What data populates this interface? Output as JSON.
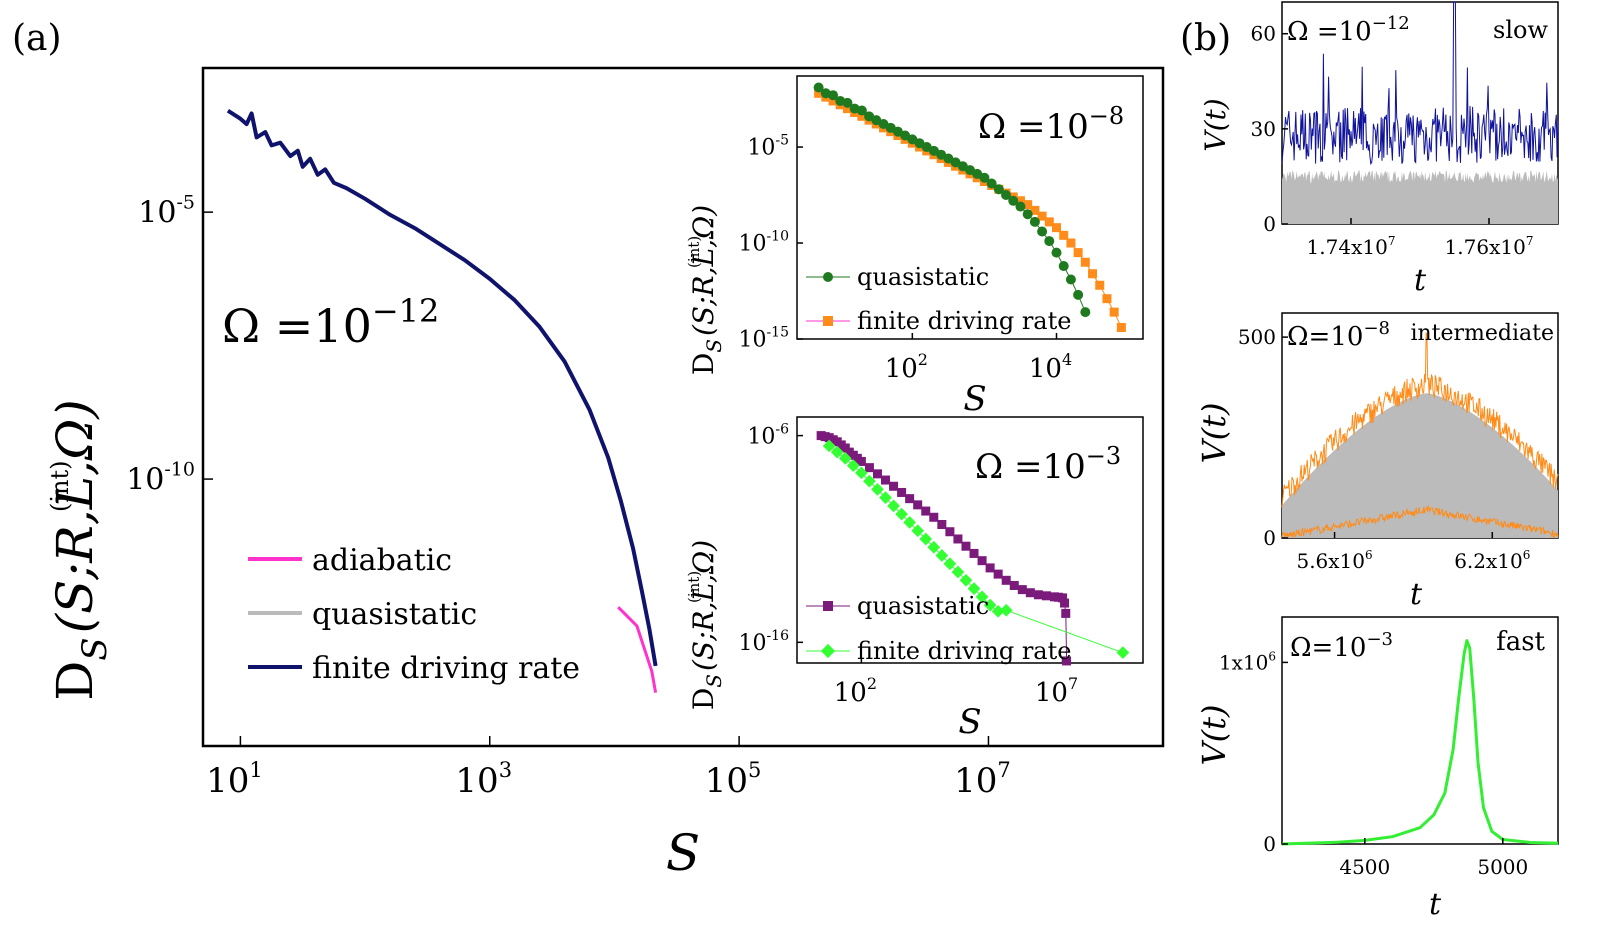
{
  "panel_labels": {
    "a": "(a)",
    "b": "(b)"
  },
  "chart_data": [
    {
      "id": "main",
      "type": "line",
      "xscale": "log",
      "yscale": "log",
      "xlim_log10": [
        0.7,
        8.4
      ],
      "ylim_log10": [
        -15.0,
        -2.3
      ],
      "xlabel": "S",
      "ylabel_main": "D",
      "ylabel_sup": "(int)",
      "ylabel_sub": "S",
      "ylabel_args": "(S;R,L,Ω)",
      "annotation_base": "Ω =10",
      "annotation_exp": "−12",
      "x_ticks": [
        {
          "base": "10",
          "exp": "1",
          "v": 1
        },
        {
          "base": "10",
          "exp": "3",
          "v": 3
        },
        {
          "base": "10",
          "exp": "5",
          "v": 5
        },
        {
          "base": "10",
          "exp": "7",
          "v": 7
        }
      ],
      "y_ticks": [
        {
          "base": "10",
          "exp": "-5",
          "v": -5
        },
        {
          "base": "10",
          "exp": "-10",
          "v": -10
        }
      ],
      "legend": [
        {
          "label": "adiabatic",
          "color": "#ff33cc"
        },
        {
          "label": "quasistatic",
          "color": "#bbbbbb"
        },
        {
          "label": "finite driving rate",
          "color": "#10136b"
        }
      ],
      "series": [
        {
          "name": "adiabatic",
          "color": "#ff33cc",
          "width": 3,
          "points_log10": [
            [
              4.03,
              -12.4
            ],
            [
              4.18,
              -12.75
            ],
            [
              4.3,
              -13.6
            ],
            [
              4.33,
              -14.0
            ]
          ]
        },
        {
          "name": "finite driving rate",
          "color": "#10136b",
          "width": 4,
          "points_log10": [
            [
              0.9,
              -3.1
            ],
            [
              1.0,
              -3.25
            ],
            [
              1.05,
              -3.35
            ],
            [
              1.09,
              -3.15
            ],
            [
              1.13,
              -3.6
            ],
            [
              1.2,
              -3.5
            ],
            [
              1.25,
              -3.75
            ],
            [
              1.32,
              -3.7
            ],
            [
              1.4,
              -3.95
            ],
            [
              1.46,
              -3.85
            ],
            [
              1.5,
              -4.15
            ],
            [
              1.56,
              -4.0
            ],
            [
              1.62,
              -4.3
            ],
            [
              1.68,
              -4.2
            ],
            [
              1.75,
              -4.45
            ],
            [
              1.85,
              -4.55
            ],
            [
              2.0,
              -4.75
            ],
            [
              2.2,
              -5.05
            ],
            [
              2.4,
              -5.3
            ],
            [
              2.6,
              -5.6
            ],
            [
              2.8,
              -5.9
            ],
            [
              3.0,
              -6.25
            ],
            [
              3.2,
              -6.65
            ],
            [
              3.4,
              -7.15
            ],
            [
              3.6,
              -7.8
            ],
            [
              3.8,
              -8.7
            ],
            [
              3.95,
              -9.6
            ],
            [
              4.05,
              -10.4
            ],
            [
              4.15,
              -11.3
            ],
            [
              4.22,
              -12.1
            ],
            [
              4.28,
              -12.8
            ],
            [
              4.33,
              -13.5
            ]
          ]
        }
      ]
    },
    {
      "id": "inset1",
      "type": "scatter",
      "xscale": "log",
      "yscale": "log",
      "xlim_log10": [
        0.4,
        5.2
      ],
      "ylim_log10": [
        -15.0,
        -1.3
      ],
      "xlabel": "S",
      "ylabel_main": "D",
      "ylabel_sup": "(int)",
      "ylabel_sub": "S",
      "ylabel_args": "(S;R,L,Ω)",
      "annotation_base": "Ω =10",
      "annotation_exp": "−8",
      "x_ticks": [
        {
          "base": "10",
          "exp": "2",
          "v": 2
        },
        {
          "base": "10",
          "exp": "4",
          "v": 4
        }
      ],
      "y_ticks": [
        {
          "base": "10",
          "exp": "-5",
          "v": -5
        },
        {
          "base": "10",
          "exp": "-10",
          "v": -10
        },
        {
          "base": "10",
          "exp": "-15",
          "v": -15
        }
      ],
      "legend": [
        {
          "label": "quasistatic",
          "color": "#1f7a1f",
          "marker": "circle"
        },
        {
          "label": "finite driving rate",
          "color": "#ff8c1a",
          "marker": "square"
        }
      ],
      "series": [
        {
          "name": "finite driving rate",
          "color": "#ff8c1a",
          "marker": "square",
          "x_log10": [
            0.7,
            0.8,
            0.9,
            1.0,
            1.1,
            1.2,
            1.3,
            1.4,
            1.5,
            1.6,
            1.7,
            1.8,
            1.9,
            2.0,
            2.1,
            2.2,
            2.3,
            2.4,
            2.5,
            2.6,
            2.7,
            2.8,
            2.9,
            3.0,
            3.1,
            3.2,
            3.3,
            3.4,
            3.5,
            3.6,
            3.7,
            3.8,
            3.9,
            4.0,
            4.1,
            4.2,
            4.3,
            4.4,
            4.5,
            4.6,
            4.7,
            4.8,
            4.9
          ],
          "y_log10": [
            -2.2,
            -2.4,
            -2.6,
            -2.8,
            -3.0,
            -3.2,
            -3.4,
            -3.6,
            -3.8,
            -4.0,
            -4.2,
            -4.4,
            -4.6,
            -4.8,
            -5.0,
            -5.2,
            -5.4,
            -5.6,
            -5.8,
            -6.0,
            -6.2,
            -6.4,
            -6.6,
            -6.8,
            -7.0,
            -7.2,
            -7.4,
            -7.6,
            -7.8,
            -8.0,
            -8.3,
            -8.6,
            -8.9,
            -9.2,
            -9.6,
            -10.0,
            -10.5,
            -11.0,
            -11.6,
            -12.2,
            -12.9,
            -13.6,
            -14.4
          ]
        },
        {
          "name": "quasistatic",
          "color": "#1f7a1f",
          "marker": "circle",
          "x_log10": [
            0.7,
            0.8,
            0.9,
            1.0,
            1.1,
            1.2,
            1.3,
            1.4,
            1.5,
            1.6,
            1.7,
            1.8,
            1.9,
            2.0,
            2.1,
            2.2,
            2.3,
            2.4,
            2.5,
            2.6,
            2.7,
            2.8,
            2.9,
            3.0,
            3.1,
            3.2,
            3.3,
            3.4,
            3.5,
            3.6,
            3.7,
            3.8,
            3.9,
            4.0,
            4.1,
            4.2,
            4.3,
            4.4
          ],
          "y_log10": [
            -1.9,
            -2.2,
            -2.3,
            -2.6,
            -2.7,
            -3.0,
            -3.1,
            -3.4,
            -3.6,
            -3.8,
            -4.0,
            -4.2,
            -4.4,
            -4.6,
            -4.8,
            -5.0,
            -5.2,
            -5.4,
            -5.6,
            -5.8,
            -6.0,
            -6.2,
            -6.4,
            -6.6,
            -6.9,
            -7.2,
            -7.5,
            -7.8,
            -8.1,
            -8.5,
            -8.9,
            -9.4,
            -9.9,
            -10.5,
            -11.2,
            -11.9,
            -12.7,
            -13.6
          ]
        }
      ]
    },
    {
      "id": "inset2",
      "type": "scatter",
      "xscale": "log",
      "yscale": "log",
      "xlim_log10": [
        0.4,
        9.0
      ],
      "ylim_log10": [
        -17.0,
        -5.1
      ],
      "xlabel": "S",
      "ylabel_main": "D",
      "ylabel_sup": "(int)",
      "ylabel_sub": "S",
      "ylabel_args": "(S;R,L,Ω)",
      "annotation_base": "Ω =10",
      "annotation_exp": "−3",
      "x_ticks": [
        {
          "base": "10",
          "exp": "2",
          "v": 2
        },
        {
          "base": "10",
          "exp": "7",
          "v": 7
        }
      ],
      "y_ticks": [
        {
          "base": "10",
          "exp": "-6",
          "v": -6
        },
        {
          "base": "10",
          "exp": "-16",
          "v": -16
        }
      ],
      "legend": [
        {
          "label": "quasistatic",
          "color": "#7a1a7a",
          "marker": "square"
        },
        {
          "label": "finite driving rate",
          "color": "#33ff33",
          "marker": "diamond"
        }
      ],
      "series": [
        {
          "name": "quasistatic",
          "color": "#7a1a7a",
          "marker": "square",
          "x_log10": [
            1.0,
            1.1,
            1.2,
            1.3,
            1.4,
            1.5,
            1.6,
            1.7,
            1.8,
            1.9,
            2.0,
            2.2,
            2.4,
            2.6,
            2.8,
            3.0,
            3.2,
            3.4,
            3.6,
            3.8,
            4.0,
            4.2,
            4.4,
            4.6,
            4.8,
            5.0,
            5.2,
            5.4,
            5.6,
            5.8,
            6.0,
            6.2,
            6.4,
            6.6,
            6.8,
            6.9,
            7.0,
            7.05,
            7.08,
            7.1
          ],
          "y_log10": [
            -6.0,
            -6.05,
            -6.1,
            -6.2,
            -6.3,
            -6.45,
            -6.6,
            -6.8,
            -6.95,
            -7.1,
            -7.25,
            -7.55,
            -7.85,
            -8.15,
            -8.45,
            -8.75,
            -9.05,
            -9.35,
            -9.65,
            -9.95,
            -10.3,
            -10.65,
            -11.0,
            -11.35,
            -11.7,
            -12.05,
            -12.4,
            -12.7,
            -13.0,
            -13.25,
            -13.45,
            -13.6,
            -13.7,
            -13.75,
            -13.8,
            -13.82,
            -13.85,
            -14.1,
            -14.6,
            -16.9
          ]
        },
        {
          "name": "finite driving rate",
          "color": "#33ff33",
          "marker": "diamond",
          "x_log10": [
            1.2,
            1.4,
            1.6,
            1.8,
            2.0,
            2.2,
            2.4,
            2.6,
            2.8,
            3.0,
            3.2,
            3.4,
            3.6,
            3.8,
            4.0,
            4.2,
            4.4,
            4.6,
            4.8,
            5.0,
            5.2,
            5.4,
            5.6,
            8.5
          ],
          "y_log10": [
            -6.5,
            -6.8,
            -7.1,
            -7.45,
            -7.8,
            -8.2,
            -8.6,
            -9.0,
            -9.4,
            -9.8,
            -10.2,
            -10.6,
            -11.0,
            -11.4,
            -11.8,
            -12.2,
            -12.6,
            -13.0,
            -13.4,
            -13.8,
            -14.2,
            -14.5,
            -14.45,
            -16.5
          ]
        }
      ]
    },
    {
      "id": "ts_slow",
      "type": "area",
      "xlim": [
        17300000,
        17700000
      ],
      "ylim": [
        0,
        70
      ],
      "xlabel": "t",
      "ylabel": "V(t)",
      "annotation_base": "Ω =10",
      "annotation_exp": "−12",
      "regime": "slow",
      "x_ticks": [
        {
          "label": "1.74x10",
          "exp": "7",
          "v": 17400000
        },
        {
          "label": "1.76x10",
          "exp": "7",
          "v": 17600000
        }
      ],
      "y_ticks": [
        {
          "label": "0",
          "v": 0
        },
        {
          "label": "30",
          "v": 30
        },
        {
          "label": "60",
          "v": 60
        }
      ],
      "fill_color": "#bbbbbb",
      "line_color": "#10139a",
      "base_level": 15,
      "mean_level": 28,
      "peak": [
        17550000,
        70
      ]
    },
    {
      "id": "ts_intermediate",
      "type": "area",
      "xlim": [
        5400000,
        6450000
      ],
      "ylim": [
        0,
        560
      ],
      "xlabel": "t",
      "ylabel": "V(t)",
      "annotation_base": "Ω=10",
      "annotation_exp": "−8",
      "regime": "intermediate",
      "x_ticks": [
        {
          "label": "5.6x10",
          "exp": "6",
          "v": 5600000
        },
        {
          "label": "6.2x10",
          "exp": "6",
          "v": 6200000
        }
      ],
      "y_ticks": [
        {
          "label": "0",
          "v": 0
        },
        {
          "label": "500",
          "v": 500
        }
      ],
      "fill_color": "#bbbbbb",
      "line_color": "#ff8c1a",
      "center": 5950000,
      "peak_level": 380,
      "edge_level": 120,
      "low_peak": 70
    },
    {
      "id": "ts_fast",
      "type": "line",
      "xlim": [
        4200,
        5200
      ],
      "ylim": [
        0,
        1250000
      ],
      "xlabel": "t",
      "ylabel": "V(t)",
      "annotation_base": "Ω=10",
      "annotation_exp": "−3",
      "regime": "fast",
      "x_ticks": [
        {
          "label": "4500",
          "v": 4500
        },
        {
          "label": "5000",
          "v": 5000
        }
      ],
      "y_ticks": [
        {
          "label": "0",
          "v": 0
        },
        {
          "label": "1x10",
          "exp": "6",
          "v": 1000000
        }
      ],
      "line_color": "#33ee33",
      "points": [
        [
          4200,
          0
        ],
        [
          4400,
          10000
        ],
        [
          4500,
          20000
        ],
        [
          4600,
          40000
        ],
        [
          4700,
          90000
        ],
        [
          4750,
          160000
        ],
        [
          4790,
          280000
        ],
        [
          4820,
          520000
        ],
        [
          4840,
          800000
        ],
        [
          4860,
          1050000
        ],
        [
          4870,
          1120000
        ],
        [
          4880,
          1080000
        ],
        [
          4895,
          800000
        ],
        [
          4910,
          450000
        ],
        [
          4930,
          200000
        ],
        [
          4960,
          70000
        ],
        [
          5000,
          25000
        ],
        [
          5100,
          8000
        ],
        [
          5200,
          4000
        ]
      ]
    }
  ]
}
